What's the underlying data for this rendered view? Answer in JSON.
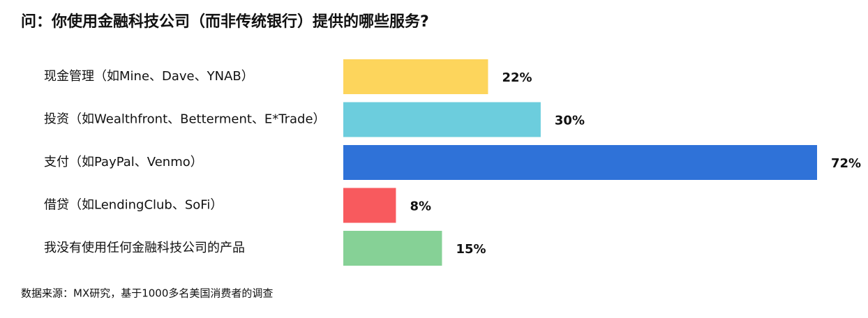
{
  "chart_data": {
    "type": "bar",
    "orientation": "horizontal",
    "title": "问：你使用金融科技公司（而非传统银行）提供的哪些服务?",
    "categories": [
      "现金管理（如Mine、Dave、YNAB）",
      "投资（如Wealthfront、Betterment、E*Trade）",
      "支付（如PayPal、Venmo）",
      "借贷（如LendingClub、SoFi）",
      "我没有使用任何金融科技公司的产品"
    ],
    "values": [
      22,
      30,
      72,
      8,
      15
    ],
    "value_labels": [
      "22%",
      "30%",
      "72%",
      "8%",
      "15%"
    ],
    "colors": [
      "#fdd55c",
      "#6ccddd",
      "#2f72d8",
      "#f85a5e",
      "#86d196"
    ],
    "source": "数据来源：MX研究，基于1000多名美国消费者的调查"
  }
}
